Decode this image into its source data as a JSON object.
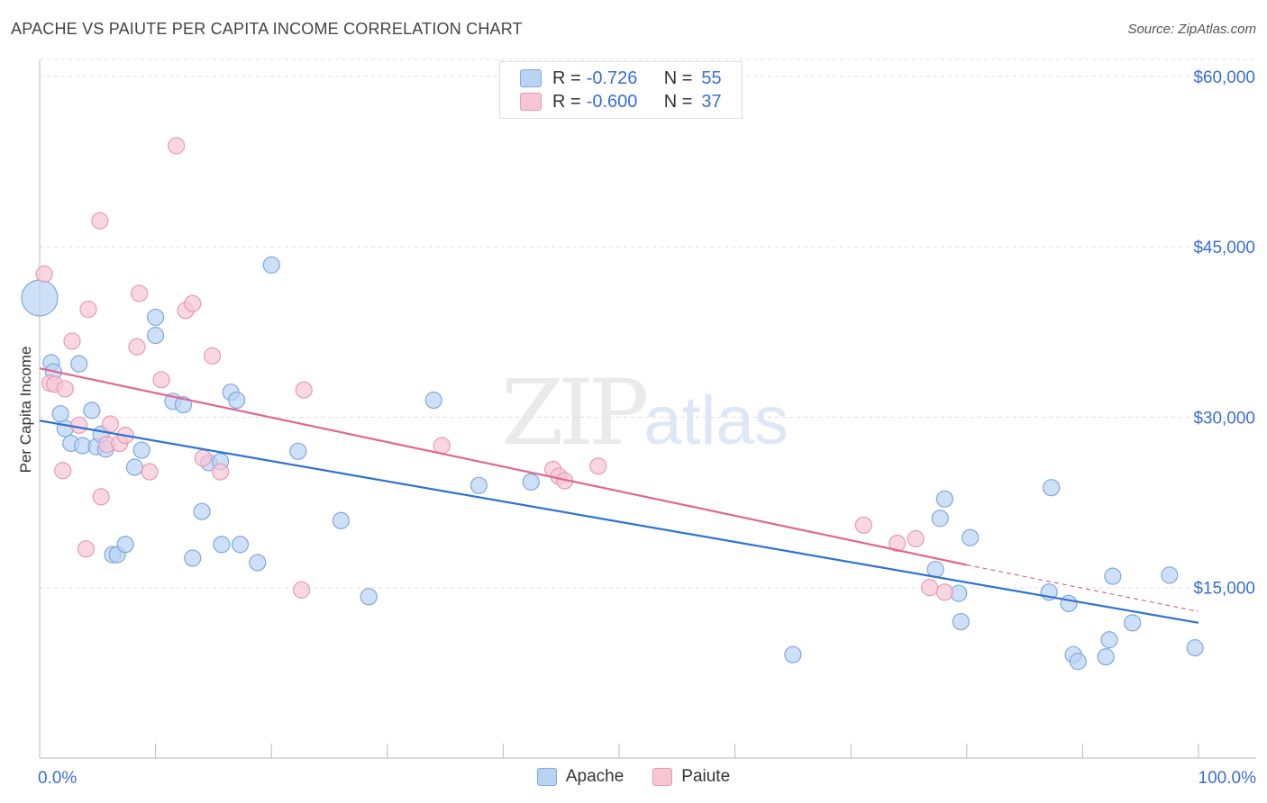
{
  "header": {
    "title": "APACHE VS PAIUTE PER CAPITA INCOME CORRELATION CHART",
    "source": "Source: ZipAtlas.com"
  },
  "watermark": {
    "zip": "ZIP",
    "atlas": "atlas"
  },
  "legend": {
    "r_label": "R =",
    "n_label": "N =",
    "apache": {
      "r": "-0.726",
      "n": "55"
    },
    "paiute": {
      "r": "-0.600",
      "n": "37"
    }
  },
  "colors": {
    "apache_fill": "#b9d3f3",
    "apache_stroke": "#7fa8dc",
    "apache_line": "#2e72d2",
    "paiute_fill": "#f7c6d5",
    "paiute_stroke": "#e89ab3",
    "paiute_line": "#e06690",
    "tick_label": "#3a6fd0",
    "grid": "#dddddd"
  },
  "chart_data": {
    "type": "scatter",
    "title": "APACHE VS PAIUTE PER CAPITA INCOME CORRELATION CHART",
    "xlabel": "",
    "ylabel": "Per Capita Income",
    "xlim": [
      0,
      100
    ],
    "ylim": [
      0,
      61500
    ],
    "x_tick_labels": [
      "0.0%",
      "100.0%"
    ],
    "y_ticks": [
      15000,
      30000,
      45000,
      60000
    ],
    "y_tick_labels": [
      "$15,000",
      "$30,000",
      "$45,000",
      "$60,000"
    ],
    "grid": true,
    "legend_position": "top-center",
    "series": [
      {
        "name": "Apache",
        "points": [
          [
            0.0,
            40500
          ],
          [
            1.0,
            34800
          ],
          [
            1.2,
            34000
          ],
          [
            1.8,
            30300
          ],
          [
            2.2,
            29000
          ],
          [
            2.7,
            27700
          ],
          [
            3.4,
            34700
          ],
          [
            3.7,
            27500
          ],
          [
            4.5,
            30600
          ],
          [
            4.9,
            27400
          ],
          [
            5.3,
            28500
          ],
          [
            5.7,
            27200
          ],
          [
            6.3,
            17900
          ],
          [
            6.7,
            17900
          ],
          [
            7.4,
            18800
          ],
          [
            8.2,
            25600
          ],
          [
            8.8,
            27100
          ],
          [
            10.0,
            38800
          ],
          [
            10.0,
            37200
          ],
          [
            11.5,
            31400
          ],
          [
            12.4,
            31100
          ],
          [
            13.2,
            17600
          ],
          [
            14.0,
            21700
          ],
          [
            14.6,
            26000
          ],
          [
            15.6,
            26100
          ],
          [
            15.7,
            18800
          ],
          [
            16.5,
            32200
          ],
          [
            17.0,
            31500
          ],
          [
            17.3,
            18800
          ],
          [
            18.8,
            17200
          ],
          [
            20.0,
            43400
          ],
          [
            22.3,
            27000
          ],
          [
            26.0,
            20900
          ],
          [
            28.4,
            14200
          ],
          [
            34.0,
            31500
          ],
          [
            37.9,
            24000
          ],
          [
            42.4,
            24300
          ],
          [
            65.0,
            9100
          ],
          [
            77.3,
            16600
          ],
          [
            77.7,
            21100
          ],
          [
            78.1,
            22800
          ],
          [
            79.3,
            14500
          ],
          [
            79.5,
            12000
          ],
          [
            80.3,
            19400
          ],
          [
            87.1,
            14600
          ],
          [
            87.3,
            23800
          ],
          [
            88.8,
            13600
          ],
          [
            89.2,
            9100
          ],
          [
            89.6,
            8500
          ],
          [
            92.0,
            8900
          ],
          [
            92.3,
            10400
          ],
          [
            92.6,
            16000
          ],
          [
            94.3,
            11900
          ],
          [
            97.5,
            16100
          ],
          [
            99.7,
            9700
          ]
        ],
        "trend": {
          "x0": 0,
          "y0": 29700,
          "x1": 100,
          "y1": 11900
        }
      },
      {
        "name": "Paiute",
        "points": [
          [
            0.4,
            42600
          ],
          [
            0.9,
            33000
          ],
          [
            1.3,
            32900
          ],
          [
            2.0,
            25300
          ],
          [
            2.2,
            32500
          ],
          [
            2.8,
            36700
          ],
          [
            3.4,
            29300
          ],
          [
            4.0,
            18400
          ],
          [
            4.2,
            39500
          ],
          [
            5.2,
            47300
          ],
          [
            5.3,
            23000
          ],
          [
            5.8,
            27600
          ],
          [
            6.1,
            29400
          ],
          [
            6.9,
            27700
          ],
          [
            7.4,
            28400
          ],
          [
            8.4,
            36200
          ],
          [
            8.6,
            40900
          ],
          [
            9.5,
            25200
          ],
          [
            10.5,
            33300
          ],
          [
            11.8,
            53900
          ],
          [
            12.6,
            39400
          ],
          [
            13.2,
            40000
          ],
          [
            14.1,
            26400
          ],
          [
            14.9,
            35400
          ],
          [
            15.6,
            25200
          ],
          [
            22.6,
            14800
          ],
          [
            22.8,
            32400
          ],
          [
            34.7,
            27500
          ],
          [
            44.3,
            25400
          ],
          [
            44.8,
            24800
          ],
          [
            45.3,
            24400
          ],
          [
            48.2,
            25700
          ],
          [
            71.1,
            20500
          ],
          [
            74.0,
            18900
          ],
          [
            75.6,
            19300
          ],
          [
            76.8,
            15000
          ],
          [
            78.1,
            14600
          ]
        ],
        "trend": {
          "x0": 0,
          "y0": 34300,
          "x1": 80,
          "y1": 17000,
          "dash_x1": 100,
          "dash_y1": 12900
        }
      }
    ]
  }
}
